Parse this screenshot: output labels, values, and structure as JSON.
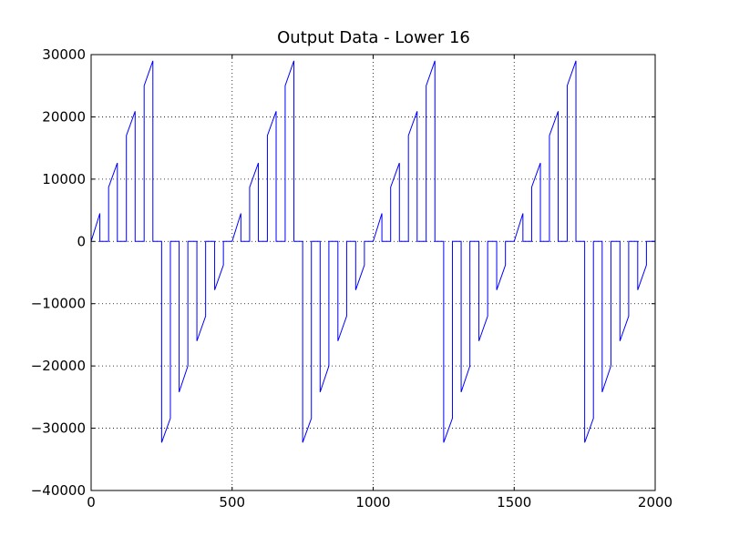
{
  "chart_data": {
    "type": "line",
    "title": "Output Data - Lower 16",
    "x": [
      0,
      31,
      31,
      62,
      62,
      93,
      93,
      125,
      125,
      156,
      156,
      188,
      188,
      219,
      219,
      250,
      250,
      281,
      281,
      312,
      312,
      343,
      343,
      375,
      375,
      406,
      406,
      438,
      438,
      469,
      469,
      500,
      500,
      531,
      531,
      562,
      562,
      593,
      593,
      625,
      625,
      656,
      656,
      688,
      688,
      719,
      719,
      750,
      750,
      781,
      781,
      812,
      812,
      843,
      843,
      875,
      875,
      906,
      906,
      938,
      938,
      969,
      969,
      1000,
      1000,
      1031,
      1031,
      1062,
      1062,
      1093,
      1093,
      1125,
      1125,
      1156,
      1156,
      1188,
      1188,
      1219,
      1219,
      1250,
      1250,
      1281,
      1281,
      1312,
      1312,
      1343,
      1343,
      1375,
      1375,
      1406,
      1406,
      1438,
      1438,
      1469,
      1469,
      1500,
      1500,
      1531,
      1531,
      1562,
      1562,
      1593,
      1593,
      1625,
      1625,
      1656,
      1656,
      1688,
      1688,
      1719,
      1719,
      1750,
      1750,
      1781,
      1781,
      1812,
      1812,
      1843,
      1843,
      1875,
      1875,
      1906,
      1906,
      1938,
      1938,
      1969,
      1969,
      2000
    ],
    "series": [
      {
        "color": "#0000ff",
        "values": [
          0,
          4500,
          0,
          0,
          8700,
          12600,
          0,
          0,
          17000,
          20900,
          0,
          0,
          25000,
          29000,
          0,
          0,
          -32300,
          -28400,
          0,
          0,
          -24200,
          -20000,
          0,
          0,
          -16000,
          -12000,
          0,
          0,
          -7800,
          -3800,
          0,
          0,
          0,
          4500,
          0,
          0,
          8700,
          12600,
          0,
          0,
          17000,
          20900,
          0,
          0,
          25000,
          29000,
          0,
          0,
          -32300,
          -28400,
          0,
          0,
          -24200,
          -20000,
          0,
          0,
          -16000,
          -12000,
          0,
          0,
          -7800,
          -3800,
          0,
          0,
          0,
          4500,
          0,
          0,
          8700,
          12600,
          0,
          0,
          17000,
          20900,
          0,
          0,
          25000,
          29000,
          0,
          0,
          -32300,
          -28400,
          0,
          0,
          -24200,
          -20000,
          0,
          0,
          -16000,
          -12000,
          0,
          0,
          -7800,
          -3800,
          0,
          0,
          0,
          4500,
          0,
          0,
          8700,
          12600,
          0,
          0,
          17000,
          20900,
          0,
          0,
          25000,
          29000,
          0,
          0,
          -32300,
          -28400,
          0,
          0,
          -24200,
          -20000,
          0,
          0,
          -16000,
          -12000,
          0,
          0,
          -7800,
          -3800,
          0,
          0
        ]
      }
    ],
    "xlim": [
      0,
      2000
    ],
    "xticks": [
      0,
      500,
      1000,
      1500,
      2000
    ],
    "ylim": [
      -40000,
      30000
    ],
    "yticks": [
      {
        "value": -40000,
        "label": "−40000"
      },
      {
        "value": -30000,
        "label": "−30000"
      },
      {
        "value": -20000,
        "label": "−20000"
      },
      {
        "value": -10000,
        "label": "−10000"
      },
      0,
      10000,
      20000,
      30000
    ],
    "grid": true
  }
}
